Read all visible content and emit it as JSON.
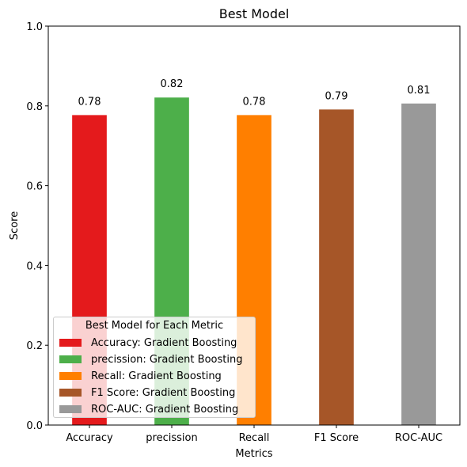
{
  "chart_data": {
    "type": "bar",
    "title": "Best Model",
    "xlabel": "Metrics",
    "ylabel": "Score",
    "ylim": [
      0,
      1.0
    ],
    "yticks": [
      "0.0",
      "0.2",
      "0.4",
      "0.6",
      "0.8",
      "1.0"
    ],
    "categories": [
      "Accuracy",
      "precission",
      "Recall",
      "F1 Score",
      "ROC-AUC"
    ],
    "values": [
      0.777,
      0.821,
      0.777,
      0.791,
      0.806
    ],
    "value_labels": [
      "0.78",
      "0.82",
      "0.78",
      "0.79",
      "0.81"
    ],
    "colors": [
      "#e41a1c",
      "#4daf4a",
      "#ff7f00",
      "#a65628",
      "#999999"
    ],
    "legend": {
      "title": "Best Model for Each Metric",
      "location": "lower-left",
      "entries": [
        "Accuracy: Gradient Boosting",
        "precission: Gradient Boosting",
        "Recall: Gradient Boosting",
        "F1 Score: Gradient Boosting",
        "ROC-AUC: Gradient Boosting"
      ]
    },
    "grid": false
  }
}
